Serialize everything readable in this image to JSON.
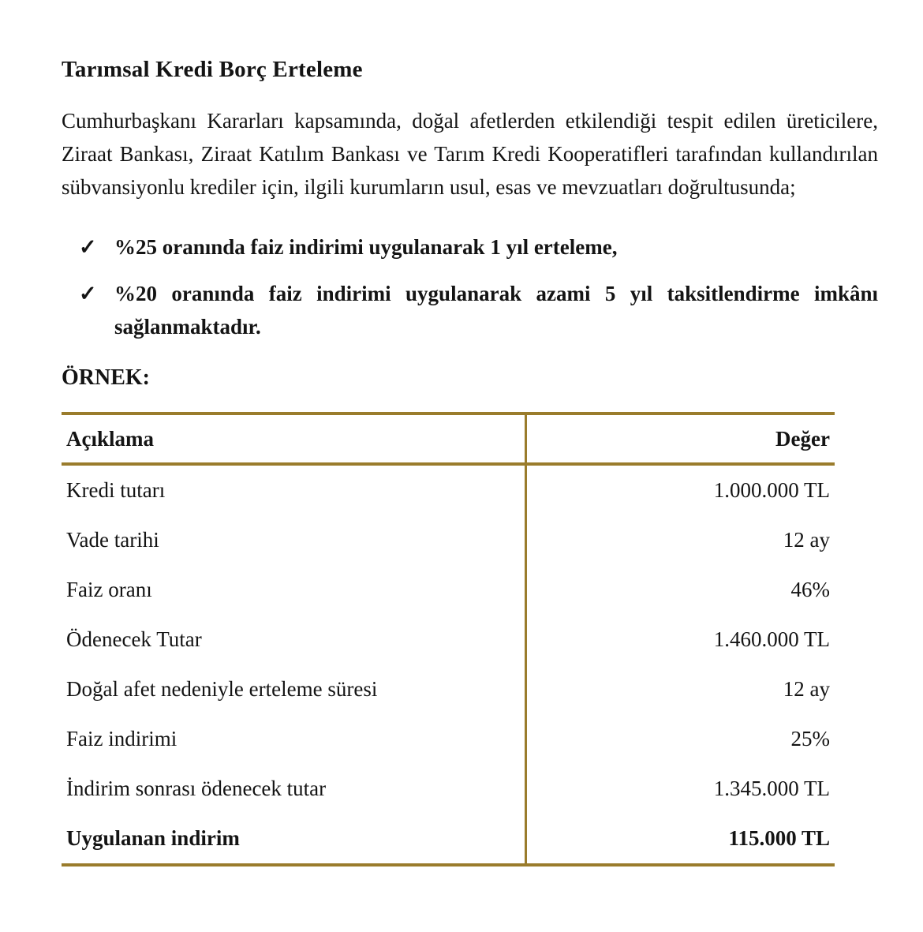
{
  "document": {
    "title": "Tarımsal Kredi Borç Erteleme",
    "intro": "Cumhurbaşkanı Kararları kapsamında, doğal afetlerden etkilendiği tespit edilen üreticilere, Ziraat Bankası, Ziraat Katılım Bankası ve Tarım Kredi Kooperatifleri tarafından kullandırılan sübvansiyonlu krediler için, ilgili kurumların usul, esas ve mevzuatları doğrultusunda;",
    "example_label": "ÖRNEK:"
  },
  "bullets": [
    {
      "marker": "✓",
      "text": "%25 oranında faiz indirimi uygulanarak 1 yıl erteleme,"
    },
    {
      "marker": "✓",
      "text": "%20 oranında faiz indirimi uygulanarak azami 5 yıl taksitlendirme imkânı sağlanmaktadır."
    }
  ],
  "table": {
    "headers": [
      "Açıklama",
      "Değer"
    ],
    "rows": [
      {
        "label": "Kredi tutarı",
        "value": "1.000.000 TL",
        "bold": false
      },
      {
        "label": "Vade tarihi",
        "value": "12 ay",
        "bold": false
      },
      {
        "label": "Faiz oranı",
        "value": "46%",
        "bold": false
      },
      {
        "label": "Ödenecek Tutar",
        "value": "1.460.000 TL",
        "bold": false
      },
      {
        "label": "Doğal afet nedeniyle erteleme süresi",
        "value": "12 ay",
        "bold": false
      },
      {
        "label": "Faiz indirimi",
        "value": "25%",
        "bold": false
      },
      {
        "label": "İndirim sonrası ödenecek tutar",
        "value": "1.345.000 TL",
        "bold": false
      },
      {
        "label": "Uygulanan indirim",
        "value": "115.000 TL",
        "bold": true
      }
    ]
  },
  "colors": {
    "border_gold": "#9a7c2c",
    "text": "#141414"
  }
}
